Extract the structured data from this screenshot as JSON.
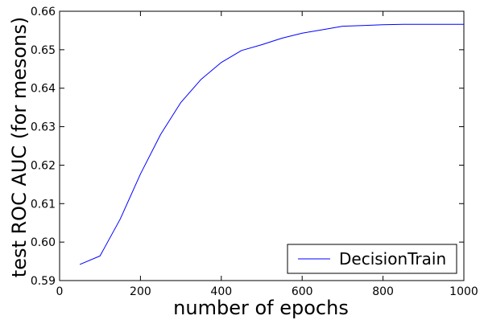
{
  "chart_data": {
    "type": "line",
    "title": "",
    "xlabel": "number of epochs",
    "ylabel": "test ROC AUC (for mesons)",
    "xlim": [
      0,
      1000
    ],
    "ylim": [
      0.59,
      0.66
    ],
    "xticks": [
      0,
      200,
      400,
      600,
      800,
      1000
    ],
    "yticks": [
      0.59,
      0.6,
      0.61,
      0.62,
      0.63,
      0.64,
      0.65,
      0.66
    ],
    "xtick_labels": [
      "0",
      "200",
      "400",
      "600",
      "800",
      "1000"
    ],
    "ytick_labels": [
      "0.59",
      "0.60",
      "0.61",
      "0.62",
      "0.63",
      "0.64",
      "0.65",
      "0.66"
    ],
    "grid": false,
    "legend": {
      "position": "bottom-right"
    },
    "series": [
      {
        "name": "DecisionTrain",
        "color": "#0000ff",
        "x": [
          50,
          100,
          150,
          200,
          250,
          300,
          350,
          400,
          450,
          500,
          550,
          600,
          650,
          700,
          750,
          800,
          850,
          900,
          950,
          1000
        ],
        "y": [
          0.5942,
          0.5964,
          0.606,
          0.6177,
          0.628,
          0.6363,
          0.6423,
          0.6467,
          0.6498,
          0.6513,
          0.653,
          0.6543,
          0.6552,
          0.6561,
          0.6563,
          0.6565,
          0.6566,
          0.6566,
          0.6566,
          0.6566
        ]
      }
    ]
  }
}
